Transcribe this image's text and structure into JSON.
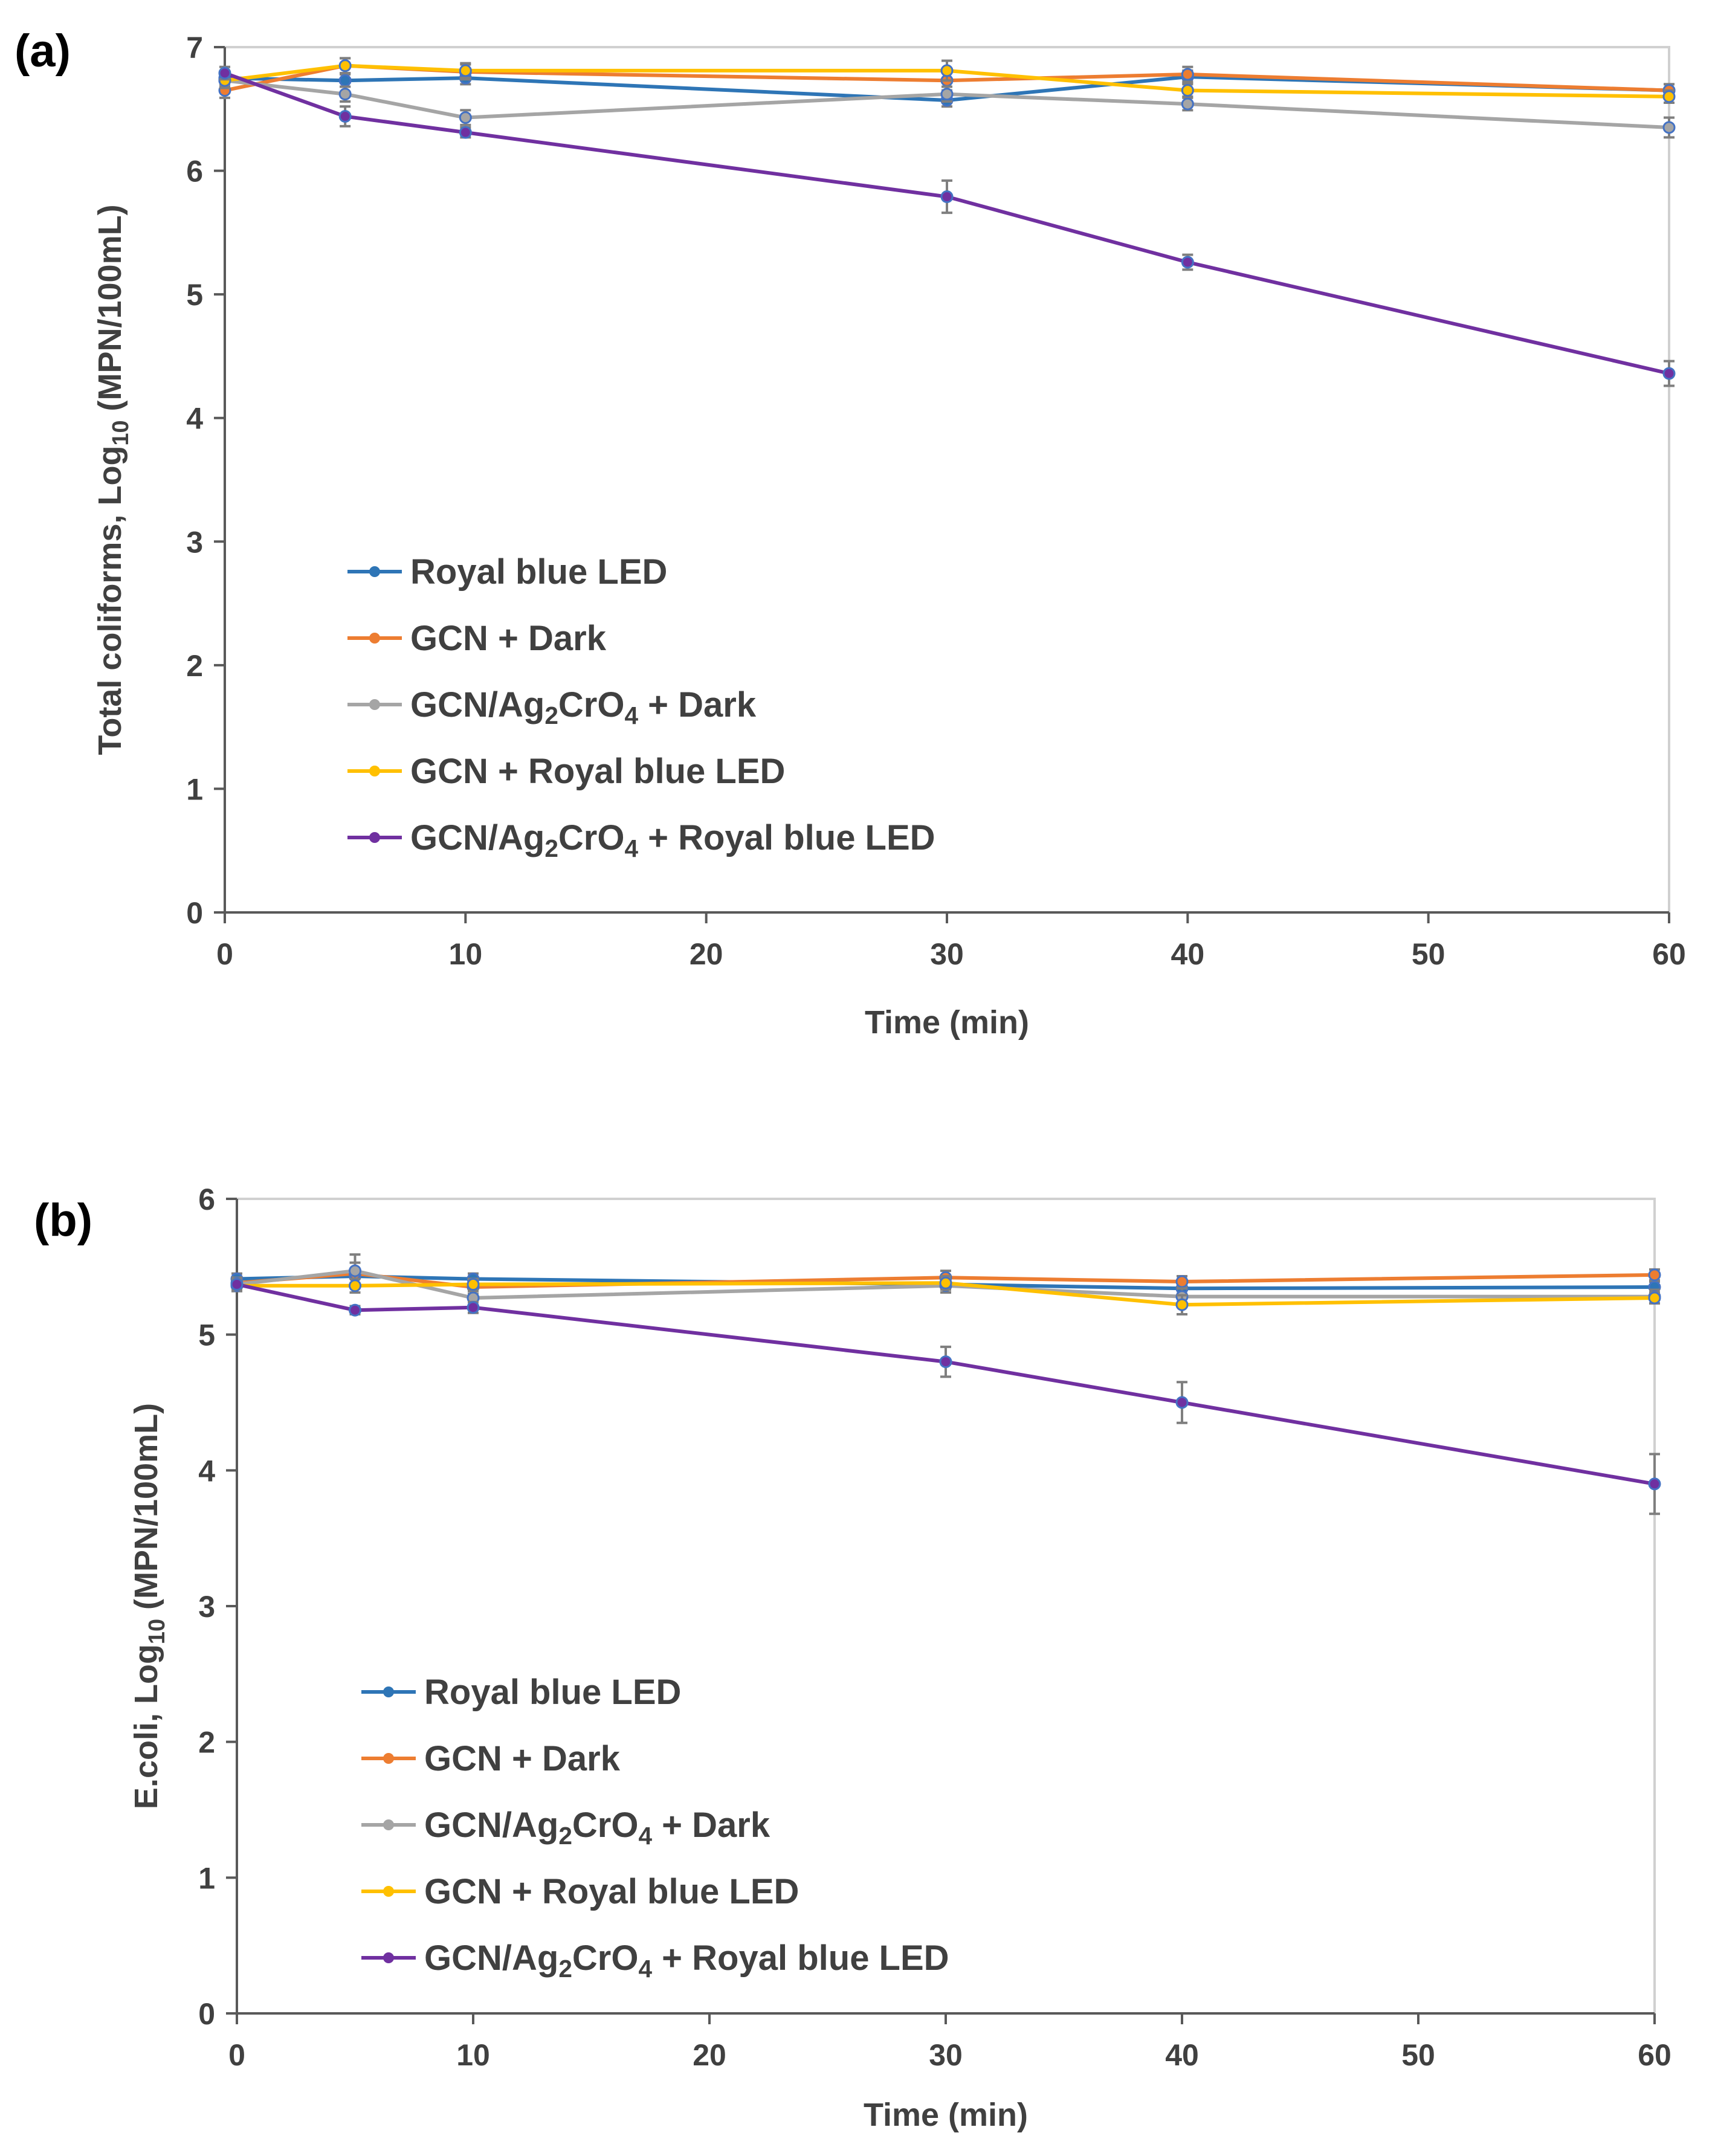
{
  "chart_data": [
    {
      "panel_label": "(a)",
      "type": "line",
      "xlabel": "Time (min)",
      "ylabel": {
        "prefix": "Total coliforms, Log",
        "sub": "10",
        "suffix": " (MPN/100mL)"
      },
      "xlim": [
        0,
        60
      ],
      "ylim": [
        0,
        7
      ],
      "xticks": [
        0,
        10,
        20,
        30,
        40,
        50,
        60
      ],
      "yticks": [
        0,
        1,
        2,
        3,
        4,
        5,
        6,
        7
      ],
      "series": [
        {
          "name": "Royal blue LED",
          "legend": [
            {
              "t": "Royal blue LED"
            }
          ],
          "color": "#2e75b6",
          "x": [
            0,
            5,
            10,
            30,
            40,
            60
          ],
          "values": [
            6.75,
            6.73,
            6.75,
            6.57,
            6.76,
            6.65
          ],
          "err": [
            0.05,
            0.05,
            0.05,
            0.05,
            0.05,
            0.05
          ]
        },
        {
          "name": "GCN + Dark",
          "legend": [
            {
              "t": "GCN + Dark"
            }
          ],
          "color": "#ed7d31",
          "x": [
            0,
            5,
            10,
            30,
            40,
            60
          ],
          "values": [
            6.65,
            6.85,
            6.8,
            6.73,
            6.78,
            6.65
          ],
          "err": [
            0.06,
            0.06,
            0.06,
            0.08,
            0.06,
            0.05
          ]
        },
        {
          "name": "GCN/Ag2CrO4 + Dark",
          "legend": [
            {
              "t": "GCN/Ag"
            },
            {
              "t": "2",
              "sub": true
            },
            {
              "t": "CrO"
            },
            {
              "t": "4",
              "sub": true
            },
            {
              "t": " + Dark"
            }
          ],
          "color": "#a5a5a5",
          "x": [
            0,
            5,
            10,
            30,
            40,
            60
          ],
          "values": [
            6.73,
            6.62,
            6.43,
            6.62,
            6.54,
            6.35
          ],
          "err": [
            0.06,
            0.06,
            0.06,
            0.06,
            0.05,
            0.08
          ]
        },
        {
          "name": "GCN + Royal blue LED",
          "legend": [
            {
              "t": "GCN + Royal blue LED"
            }
          ],
          "color": "#ffc000",
          "x": [
            0,
            5,
            10,
            30,
            40,
            60
          ],
          "values": [
            6.73,
            6.85,
            6.81,
            6.81,
            6.65,
            6.6
          ],
          "err": [
            0.05,
            0.06,
            0.06,
            0.08,
            0.05,
            0.05
          ]
        },
        {
          "name": "GCN/Ag2CrO4 + Royal blue LED",
          "legend": [
            {
              "t": "GCN/Ag"
            },
            {
              "t": "2",
              "sub": true
            },
            {
              "t": "CrO"
            },
            {
              "t": "4",
              "sub": true
            },
            {
              "t": " + Royal blue LED"
            }
          ],
          "color": "#7030a0",
          "x": [
            0,
            5,
            10,
            30,
            40,
            60
          ],
          "values": [
            6.79,
            6.44,
            6.31,
            5.79,
            5.26,
            4.36
          ],
          "err": [
            0.05,
            0.08,
            0.04,
            0.13,
            0.06,
            0.1
          ]
        }
      ]
    },
    {
      "panel_label": "(b)",
      "type": "line",
      "xlabel": "Time (min)",
      "ylabel": {
        "prefix": "E.coli, Log",
        "sub": "10",
        "suffix": " (MPN/100mL)"
      },
      "xlim": [
        0,
        60
      ],
      "ylim": [
        0,
        6
      ],
      "xticks": [
        0,
        10,
        20,
        30,
        40,
        50,
        60
      ],
      "yticks": [
        0,
        1,
        2,
        3,
        4,
        5,
        6
      ],
      "series": [
        {
          "name": "Royal blue LED",
          "legend": [
            {
              "t": "Royal blue LED"
            }
          ],
          "color": "#2e75b6",
          "x": [
            0,
            5,
            10,
            30,
            40,
            60
          ],
          "values": [
            5.41,
            5.43,
            5.41,
            5.37,
            5.34,
            5.35
          ],
          "err": [
            0.04,
            0.05,
            0.04,
            0.06,
            0.04,
            0.04
          ]
        },
        {
          "name": "GCN + Dark",
          "legend": [
            {
              "t": "GCN + Dark"
            }
          ],
          "color": "#ed7d31",
          "x": [
            0,
            5,
            10,
            30,
            40,
            60
          ],
          "values": [
            5.38,
            5.45,
            5.35,
            5.42,
            5.39,
            5.44
          ],
          "err": [
            0.04,
            0.08,
            0.05,
            0.05,
            0.04,
            0.04
          ]
        },
        {
          "name": "GCN/Ag2CrO4 + Dark",
          "legend": [
            {
              "t": "GCN/Ag"
            },
            {
              "t": "2",
              "sub": true
            },
            {
              "t": "CrO"
            },
            {
              "t": "4",
              "sub": true
            },
            {
              "t": " + Dark"
            }
          ],
          "color": "#a5a5a5",
          "x": [
            0,
            5,
            10,
            30,
            40,
            60
          ],
          "values": [
            5.37,
            5.47,
            5.27,
            5.36,
            5.28,
            5.28
          ],
          "err": [
            0.04,
            0.12,
            0.05,
            0.05,
            0.06,
            0.05
          ]
        },
        {
          "name": "GCN + Royal blue LED",
          "legend": [
            {
              "t": "GCN + Royal blue LED"
            }
          ],
          "color": "#ffc000",
          "x": [
            0,
            5,
            10,
            30,
            40,
            60
          ],
          "values": [
            5.36,
            5.36,
            5.37,
            5.38,
            5.22,
            5.27
          ],
          "err": [
            0.04,
            0.05,
            0.04,
            0.05,
            0.07,
            0.04
          ]
        },
        {
          "name": "GCN/Ag2CrO4 + Royal blue LED",
          "legend": [
            {
              "t": "GCN/Ag"
            },
            {
              "t": "2",
              "sub": true
            },
            {
              "t": "CrO"
            },
            {
              "t": "4",
              "sub": true
            },
            {
              "t": " + Royal blue LED"
            }
          ],
          "color": "#7030a0",
          "x": [
            0,
            5,
            10,
            30,
            40,
            60
          ],
          "values": [
            5.37,
            5.18,
            5.2,
            4.8,
            4.5,
            3.9
          ],
          "err": [
            0.04,
            0.03,
            0.04,
            0.11,
            0.15,
            0.22
          ]
        }
      ]
    }
  ]
}
